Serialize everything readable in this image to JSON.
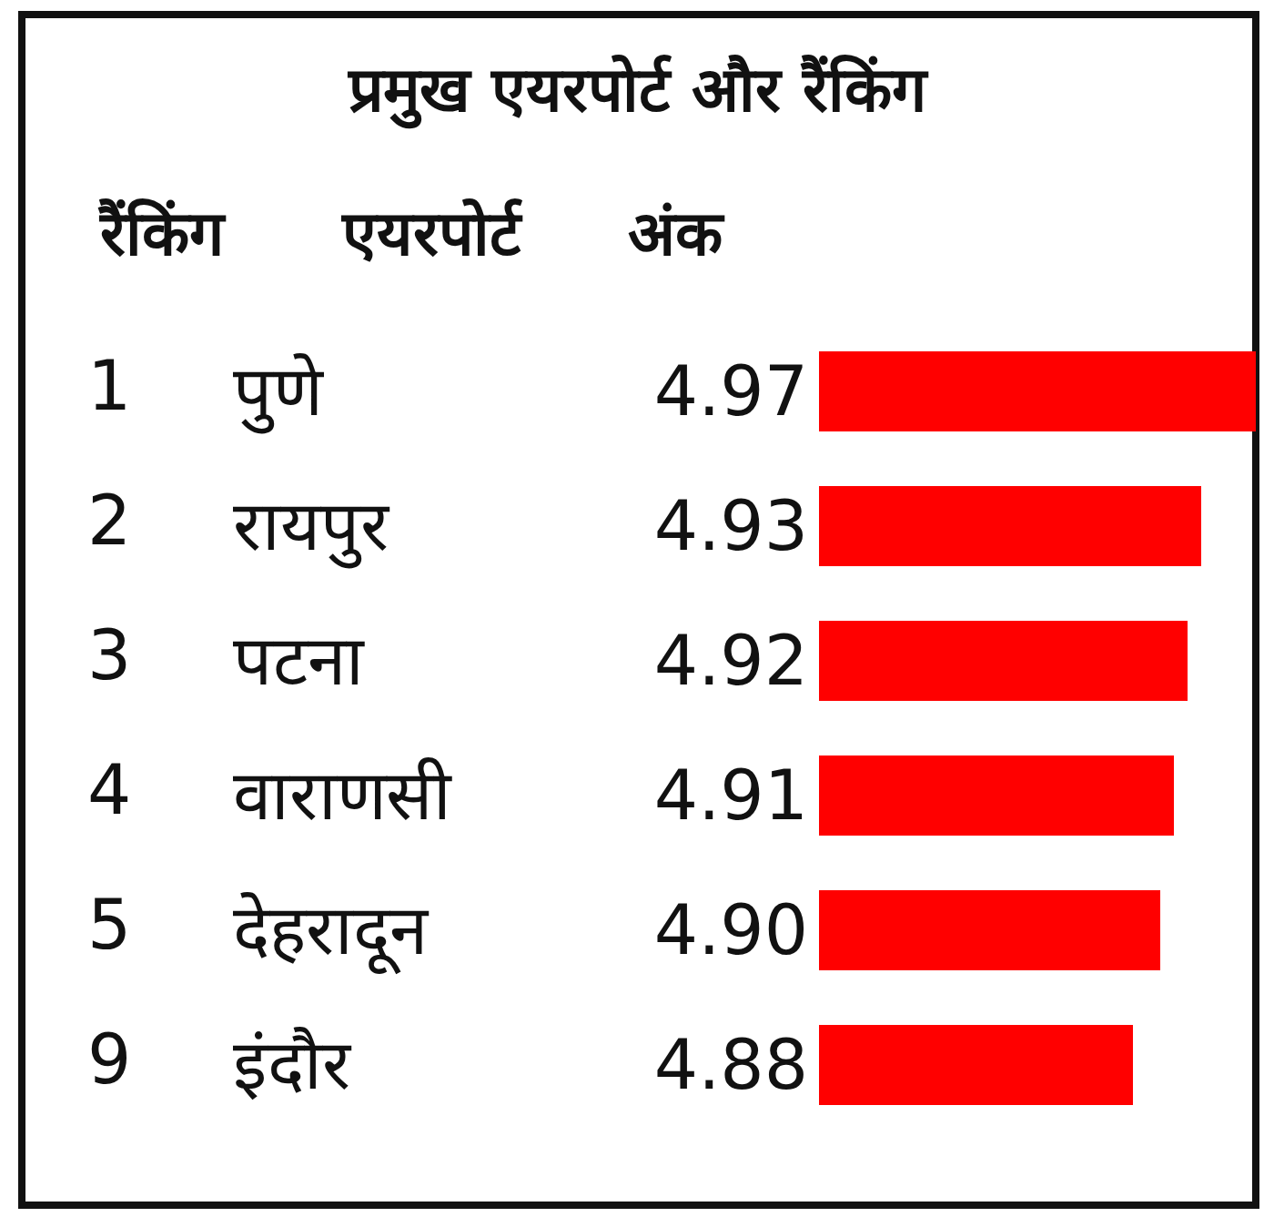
{
  "chart_data": {
    "type": "bar",
    "orientation": "horizontal",
    "title": "प्रमुख एयरपोर्ट और रैंकिंग",
    "ylabel": "एयरपोर्ट",
    "categories": [
      "पुणे",
      "रायपुर",
      "पटना",
      "वाराणसी",
      "देहरादून",
      "इंदौर"
    ],
    "values": [
      4.97,
      4.93,
      4.92,
      4.91,
      4.9,
      4.88
    ],
    "value_labels": [
      "4.97",
      "4.93",
      "4.92",
      "4.91",
      "4.90",
      "4.88"
    ],
    "color": "#ff0000",
    "xlim": [
      4.65,
      4.97
    ],
    "tick_labels": false,
    "annotations": [
      "रैंकिंग",
      "अंक",
      "1",
      "2",
      "3",
      "4",
      "5",
      "9"
    ]
  }
}
